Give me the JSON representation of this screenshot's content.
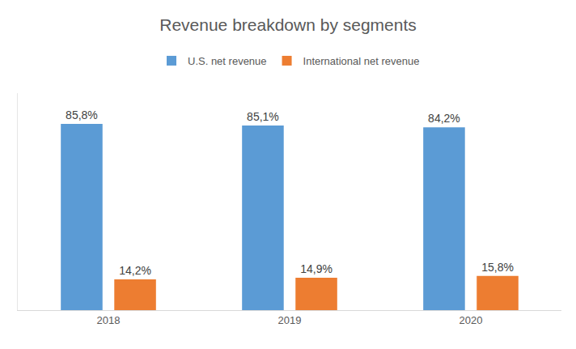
{
  "chart_data": {
    "type": "bar",
    "title": "Revenue breakdown by segments",
    "categories": [
      "2018",
      "2019",
      "2020"
    ],
    "series": [
      {
        "name": "U.S. net revenue",
        "color": "#5b9bd5",
        "values": [
          85.8,
          85.1,
          84.2
        ],
        "value_labels": [
          "85,8%",
          "85,1%",
          "84,2%"
        ]
      },
      {
        "name": "International net revenue",
        "color": "#ed7d31",
        "values": [
          14.2,
          14.9,
          15.8
        ],
        "value_labels": [
          "14,2%",
          "14,9%",
          "15,8%"
        ]
      }
    ],
    "ylim": [
      0,
      100
    ],
    "grid": false,
    "legend": "top",
    "data_labels": true,
    "tick_labels": "x"
  }
}
